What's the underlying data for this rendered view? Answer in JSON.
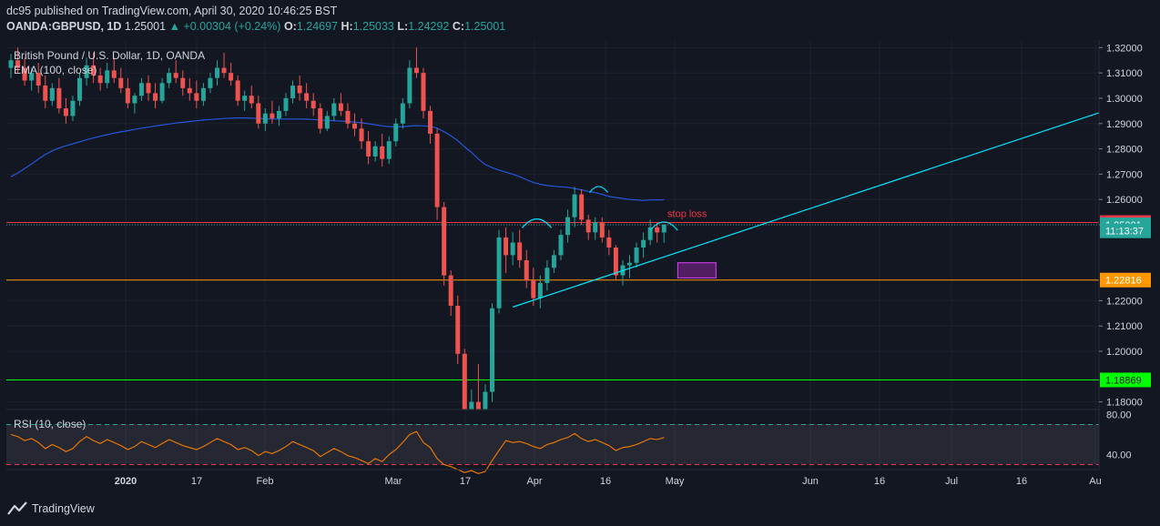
{
  "header": {
    "published_line": "dc95 published on TradingView.com, April 30, 2020 10:46:25 BST",
    "symbol": "OANDA:GBPUSD, 1D",
    "last": "1.25001",
    "change": "+0.00304 (+0.24%)",
    "open_label": "O:",
    "open": "1.24697",
    "high_label": "H:",
    "high": "1.25033",
    "low_label": "L:",
    "low": "1.24292",
    "close_label": "C:",
    "close": "1.25001"
  },
  "legend": {
    "instrument": "British Pound / U.S. Dollar, 1D, OANDA",
    "ema": "EMA (100, close)",
    "rsi": "RSI (10, close)"
  },
  "annotations": {
    "stop_loss": "stop loss"
  },
  "price_tags": [
    {
      "label": "1.25088",
      "value": 1.25088,
      "color": "#f23645"
    },
    {
      "label": "1.25001",
      "value": 1.25001,
      "color": "#26a69a"
    },
    {
      "label": "11:13:37",
      "value": 1.2476,
      "color": "#26a69a"
    },
    {
      "label": "1.22816",
      "value": 1.22816,
      "color": "#ff9800"
    },
    {
      "label": "1.18869",
      "value": 1.18869,
      "color": "#00ff00"
    }
  ],
  "footer": {
    "brand": "TradingView"
  },
  "chart_data": {
    "type": "candlestick",
    "yaxis_ticks": [
      "1.32000",
      "1.31000",
      "1.30000",
      "1.29000",
      "1.28000",
      "1.27000",
      "1.26000",
      "1.25000",
      "1.22000",
      "1.21000",
      "1.20000",
      "1.18000"
    ],
    "ylim": [
      1.177,
      1.323
    ],
    "xaxis_ticks": [
      "2020",
      "17",
      "Feb",
      "Mar",
      "17",
      "Apr",
      "16",
      "May",
      "Jun",
      "16",
      "Jul",
      "16",
      "Au"
    ],
    "horizontal_levels": [
      {
        "value": 1.25088,
        "color": "#f23645",
        "style": "solid"
      },
      {
        "value": 1.25001,
        "color": "#26a69a",
        "style": "dotted"
      },
      {
        "value": 1.22816,
        "color": "#ff9800",
        "style": "solid"
      },
      {
        "value": 1.18869,
        "color": "#00ff00",
        "style": "solid"
      }
    ],
    "candles": [
      [
        1.312,
        1.3175,
        1.308,
        1.315
      ],
      [
        1.315,
        1.32,
        1.31,
        1.312
      ],
      [
        1.312,
        1.316,
        1.305,
        1.307
      ],
      [
        1.307,
        1.312,
        1.303,
        1.31
      ],
      [
        1.31,
        1.314,
        1.302,
        1.305
      ],
      [
        1.305,
        1.309,
        1.296,
        1.299
      ],
      [
        1.299,
        1.306,
        1.297,
        1.304
      ],
      [
        1.304,
        1.308,
        1.294,
        1.296
      ],
      [
        1.296,
        1.3,
        1.29,
        1.293
      ],
      [
        1.293,
        1.301,
        1.291,
        1.299
      ],
      [
        1.299,
        1.31,
        1.297,
        1.308
      ],
      [
        1.308,
        1.316,
        1.305,
        1.313
      ],
      [
        1.313,
        1.318,
        1.306,
        1.309
      ],
      [
        1.309,
        1.312,
        1.303,
        1.306
      ],
      [
        1.306,
        1.314,
        1.304,
        1.311
      ],
      [
        1.311,
        1.316,
        1.306,
        1.308
      ],
      [
        1.308,
        1.312,
        1.302,
        1.304
      ],
      [
        1.304,
        1.308,
        1.296,
        1.298
      ],
      [
        1.298,
        1.302,
        1.294,
        1.301
      ],
      [
        1.301,
        1.308,
        1.299,
        1.306
      ],
      [
        1.306,
        1.309,
        1.299,
        1.302
      ],
      [
        1.302,
        1.306,
        1.296,
        1.299
      ],
      [
        1.299,
        1.308,
        1.298,
        1.306
      ],
      [
        1.306,
        1.312,
        1.304,
        1.31
      ],
      [
        1.31,
        1.315,
        1.306,
        1.308
      ],
      [
        1.308,
        1.311,
        1.301,
        1.304
      ],
      [
        1.304,
        1.308,
        1.299,
        1.302
      ],
      [
        1.302,
        1.307,
        1.296,
        1.299
      ],
      [
        1.299,
        1.306,
        1.297,
        1.304
      ],
      [
        1.304,
        1.31,
        1.302,
        1.308
      ],
      [
        1.308,
        1.315,
        1.305,
        1.312
      ],
      [
        1.312,
        1.318,
        1.308,
        1.31
      ],
      [
        1.31,
        1.314,
        1.305,
        1.307
      ],
      [
        1.307,
        1.309,
        1.297,
        1.299
      ],
      [
        1.299,
        1.303,
        1.295,
        1.301
      ],
      [
        1.301,
        1.305,
        1.296,
        1.298
      ],
      [
        1.298,
        1.301,
        1.288,
        1.29
      ],
      [
        1.29,
        1.296,
        1.287,
        1.294
      ],
      [
        1.294,
        1.299,
        1.29,
        1.292
      ],
      [
        1.292,
        1.297,
        1.289,
        1.295
      ],
      [
        1.295,
        1.302,
        1.293,
        1.3
      ],
      [
        1.3,
        1.307,
        1.298,
        1.305
      ],
      [
        1.305,
        1.309,
        1.299,
        1.302
      ],
      [
        1.302,
        1.306,
        1.296,
        1.299
      ],
      [
        1.299,
        1.302,
        1.293,
        1.296
      ],
      [
        1.296,
        1.298,
        1.286,
        1.288
      ],
      [
        1.288,
        1.295,
        1.287,
        1.293
      ],
      [
        1.293,
        1.3,
        1.291,
        1.298
      ],
      [
        1.298,
        1.302,
        1.293,
        1.295
      ],
      [
        1.295,
        1.298,
        1.288,
        1.29
      ],
      [
        1.29,
        1.294,
        1.285,
        1.288
      ],
      [
        1.288,
        1.292,
        1.28,
        1.283
      ],
      [
        1.283,
        1.287,
        1.274,
        1.277
      ],
      [
        1.277,
        1.283,
        1.275,
        1.281
      ],
      [
        1.281,
        1.286,
        1.273,
        1.276
      ],
      [
        1.276,
        1.285,
        1.274,
        1.283
      ],
      [
        1.283,
        1.292,
        1.281,
        1.29
      ],
      [
        1.29,
        1.3,
        1.288,
        1.298
      ],
      [
        1.298,
        1.315,
        1.296,
        1.312
      ],
      [
        1.312,
        1.32,
        1.308,
        1.31
      ],
      [
        1.31,
        1.312,
        1.292,
        1.295
      ],
      [
        1.295,
        1.297,
        1.282,
        1.286
      ],
      [
        1.286,
        1.288,
        1.252,
        1.257
      ],
      [
        1.257,
        1.259,
        1.226,
        1.23
      ],
      [
        1.23,
        1.232,
        1.214,
        1.218
      ],
      [
        1.218,
        1.222,
        1.195,
        1.199
      ],
      [
        1.199,
        1.201,
        1.165,
        1.172
      ],
      [
        1.172,
        1.185,
        1.162,
        1.18
      ],
      [
        1.18,
        1.195,
        1.162,
        1.165
      ],
      [
        1.165,
        1.187,
        1.16,
        1.184
      ],
      [
        1.184,
        1.219,
        1.18,
        1.217
      ],
      [
        1.217,
        1.248,
        1.215,
        1.245
      ],
      [
        1.245,
        1.249,
        1.231,
        1.238
      ],
      [
        1.238,
        1.247,
        1.234,
        1.243
      ],
      [
        1.243,
        1.248,
        1.233,
        1.236
      ],
      [
        1.236,
        1.24,
        1.225,
        1.228
      ],
      [
        1.228,
        1.233,
        1.218,
        1.221
      ],
      [
        1.221,
        1.23,
        1.217,
        1.227
      ],
      [
        1.227,
        1.236,
        1.224,
        1.233
      ],
      [
        1.233,
        1.24,
        1.231,
        1.238
      ],
      [
        1.238,
        1.248,
        1.236,
        1.246
      ],
      [
        1.246,
        1.256,
        1.243,
        1.253
      ],
      [
        1.253,
        1.265,
        1.249,
        1.262
      ],
      [
        1.262,
        1.264,
        1.25,
        1.252
      ],
      [
        1.252,
        1.254,
        1.244,
        1.247
      ],
      [
        1.247,
        1.253,
        1.244,
        1.251
      ],
      [
        1.251,
        1.253,
        1.243,
        1.245
      ],
      [
        1.245,
        1.248,
        1.238,
        1.241
      ],
      [
        1.241,
        1.242,
        1.228,
        1.23
      ],
      [
        1.23,
        1.236,
        1.226,
        1.234
      ],
      [
        1.234,
        1.238,
        1.229,
        1.235
      ],
      [
        1.235,
        1.243,
        1.233,
        1.241
      ],
      [
        1.241,
        1.247,
        1.237,
        1.244
      ],
      [
        1.244,
        1.252,
        1.242,
        1.249
      ],
      [
        1.249,
        1.251,
        1.243,
        1.247
      ],
      [
        1.24697,
        1.25033,
        1.24292,
        1.25001
      ]
    ],
    "ema": [
      1.269,
      1.2705,
      1.2722,
      1.274,
      1.276,
      1.2778,
      1.2792,
      1.2803,
      1.2812,
      1.282,
      1.2828,
      1.2836,
      1.2843,
      1.285,
      1.2856,
      1.2862,
      1.2867,
      1.2872,
      1.2877,
      1.2882,
      1.2886,
      1.289,
      1.2894,
      1.2898,
      1.2902,
      1.2905,
      1.2908,
      1.2911,
      1.2914,
      1.2916,
      1.2918,
      1.292,
      1.2921,
      1.2922,
      1.2922,
      1.2921,
      1.292,
      1.2919,
      1.2918,
      1.2918,
      1.2918,
      1.2918,
      1.2918,
      1.2917,
      1.2916,
      1.2914,
      1.2912,
      1.2911,
      1.291,
      1.2908,
      1.2906,
      1.2903,
      1.2899,
      1.2895,
      1.2891,
      1.2888,
      1.2887,
      1.2887,
      1.289,
      1.2892,
      1.2891,
      1.2889,
      1.2882,
      1.2868,
      1.2852,
      1.2832,
      1.2808,
      1.2786,
      1.276,
      1.2738,
      1.2726,
      1.2716,
      1.2708,
      1.27,
      1.269,
      1.2678,
      1.2667,
      1.266,
      1.2655,
      1.2652,
      1.265,
      1.2648,
      1.2643,
      1.2638,
      1.2632,
      1.2627,
      1.262,
      1.2612,
      1.2608,
      1.2604,
      1.26,
      1.2598,
      1.2596,
      1.2598,
      1.2598,
      1.2599
    ],
    "rsi": {
      "label": "RSI (10, close)",
      "ticks": [
        "80.00",
        "40.00"
      ],
      "ylim": [
        25,
        85
      ],
      "bands": [
        70,
        30
      ],
      "values": [
        60,
        58,
        54,
        56,
        52,
        46,
        50,
        47,
        43,
        46,
        53,
        58,
        54,
        51,
        55,
        52,
        49,
        45,
        48,
        53,
        50,
        47,
        51,
        55,
        52,
        49,
        47,
        45,
        48,
        52,
        56,
        53,
        50,
        45,
        47,
        44,
        39,
        43,
        41,
        44,
        48,
        53,
        50,
        47,
        44,
        38,
        42,
        46,
        43,
        39,
        37,
        34,
        31,
        36,
        33,
        40,
        45,
        52,
        60,
        63,
        52,
        47,
        36,
        30,
        28,
        25,
        22,
        24,
        21,
        23,
        34,
        44,
        54,
        52,
        53,
        51,
        48,
        46,
        50,
        52,
        55,
        57,
        61,
        56,
        53,
        55,
        52,
        49,
        44,
        47,
        48,
        50,
        53,
        56,
        55,
        57
      ]
    }
  }
}
